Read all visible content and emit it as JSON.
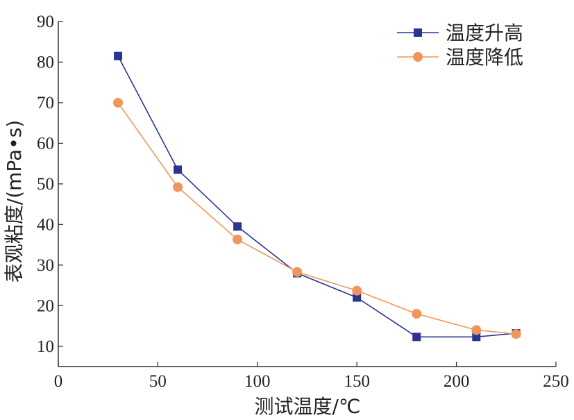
{
  "chart_data": {
    "type": "line",
    "xlabel": "测试温度/℃",
    "ylabel": "表观粘度/(mPa•s)",
    "xlim": [
      0,
      250
    ],
    "ylim": [
      5,
      90
    ],
    "xticks": [
      0,
      50,
      100,
      150,
      200,
      250
    ],
    "yticks": [
      10,
      20,
      30,
      40,
      50,
      60,
      70,
      80,
      90
    ],
    "grid": false,
    "legend_position": "top-right",
    "x": [
      30,
      60,
      90,
      120,
      150,
      180,
      210,
      230
    ],
    "series": [
      {
        "name": "温度升高",
        "color": "#2b3590",
        "marker": "square",
        "values": [
          81.5,
          53.5,
          39.5,
          28,
          22,
          12.3,
          12.3,
          13.2
        ]
      },
      {
        "name": "温度降低",
        "color": "#f0965a",
        "marker": "circle",
        "values": [
          70,
          49.2,
          36.3,
          28.3,
          23.7,
          18,
          14,
          13
        ]
      }
    ]
  }
}
